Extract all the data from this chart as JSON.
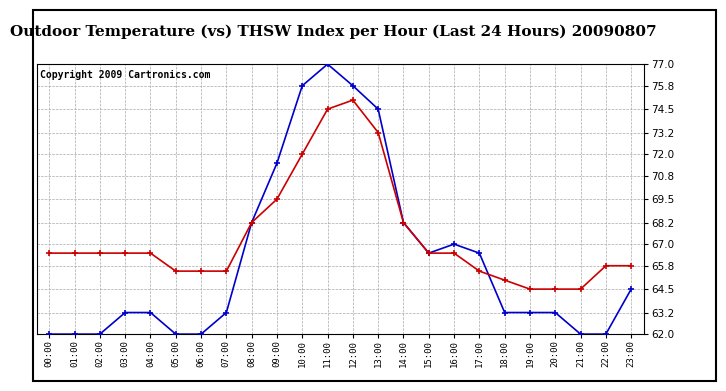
{
  "title": "Outdoor Temperature (vs) THSW Index per Hour (Last 24 Hours) 20090807",
  "copyright": "Copyright 2009 Cartronics.com",
  "hours": [
    "00:00",
    "01:00",
    "02:00",
    "03:00",
    "04:00",
    "05:00",
    "06:00",
    "07:00",
    "08:00",
    "09:00",
    "10:00",
    "11:00",
    "12:00",
    "13:00",
    "14:00",
    "15:00",
    "16:00",
    "17:00",
    "18:00",
    "19:00",
    "20:00",
    "21:00",
    "22:00",
    "23:00"
  ],
  "temp_red": [
    66.5,
    66.5,
    66.5,
    66.5,
    66.5,
    65.5,
    65.5,
    65.5,
    68.2,
    69.5,
    72.0,
    74.5,
    75.0,
    73.2,
    68.2,
    66.5,
    66.5,
    65.5,
    65.0,
    64.5,
    64.5,
    64.5,
    65.8,
    65.8
  ],
  "thsw_blue": [
    62.0,
    62.0,
    62.0,
    63.2,
    63.2,
    62.0,
    62.0,
    63.2,
    68.2,
    71.5,
    75.8,
    77.0,
    75.8,
    74.5,
    68.2,
    66.5,
    67.0,
    66.5,
    63.2,
    63.2,
    63.2,
    62.0,
    62.0,
    64.5
  ],
  "ylim_min": 62.0,
  "ylim_max": 77.0,
  "yticks": [
    62.0,
    63.2,
    64.5,
    65.8,
    67.0,
    68.2,
    69.5,
    70.8,
    72.0,
    73.2,
    74.5,
    75.8,
    77.0
  ],
  "background_color": "#ffffff",
  "plot_bg_color": "#ffffff",
  "grid_color": "#aaaaaa",
  "red_color": "#cc0000",
  "blue_color": "#0000cc",
  "title_fontsize": 11,
  "copyright_fontsize": 7
}
